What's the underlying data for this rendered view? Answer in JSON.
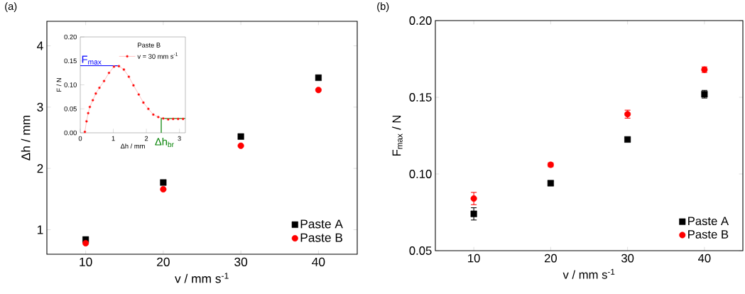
{
  "chart_data": [
    {
      "type": "scatter",
      "title": "(a)",
      "xlabel": "v / mm s$^{-1}$",
      "ylabel": "Δh / mm",
      "x": [
        10,
        20,
        30,
        40
      ],
      "xlim": [
        5,
        45
      ],
      "ylim": [
        0.6,
        4.4
      ],
      "xticks": [
        10,
        20,
        30,
        40
      ],
      "yticks": [
        1,
        2,
        3,
        4
      ],
      "legend": "bottom right",
      "series": [
        {
          "name": "Paste A",
          "color": "#000000",
          "marker": "square",
          "values": [
            0.84,
            1.77,
            2.52,
            3.48
          ]
        },
        {
          "name": "Paste B",
          "color": "#ff0000",
          "marker": "circle",
          "values": [
            0.78,
            1.66,
            2.37,
            3.28
          ]
        }
      ]
    },
    {
      "type": "line",
      "xlabel": "Δh / mm",
      "ylabel": "F / N",
      "legend_title": "Paste B",
      "legend": "top right",
      "marker": "circle",
      "xlim": [
        0,
        3.18
      ],
      "ylim": [
        0,
        0.2
      ],
      "xticks": [
        0,
        1,
        2,
        3
      ],
      "yticks": [
        {
          "value": 0,
          "label": "0.00"
        },
        {
          "value": 0.05,
          "label": "0.05"
        },
        {
          "value": 0.1,
          "label": "0.10"
        },
        {
          "value": 0.15,
          "label": "0.15"
        },
        {
          "value": 0.2,
          "label": "0.20"
        }
      ],
      "series": [
        {
          "name": "v = 30 mm s$^{-1}$",
          "color": "#ff0000",
          "x": [
            0.14,
            0.19,
            0.24,
            0.29,
            0.38,
            0.47,
            0.58,
            0.72,
            0.87,
            1.02,
            1.17,
            1.32,
            1.47,
            1.61,
            1.77,
            1.91,
            2.06,
            2.21,
            2.36,
            2.51,
            2.66,
            2.81,
            2.96,
            3.11
          ],
          "values": [
            0.002,
            0.024,
            0.041,
            0.054,
            0.068,
            0.082,
            0.094,
            0.108,
            0.125,
            0.138,
            0.139,
            0.132,
            0.117,
            0.099,
            0.08,
            0.063,
            0.05,
            0.038,
            0.033,
            0.03,
            0.028,
            0.029,
            0.029,
            0.029
          ]
        }
      ],
      "ref_lines": [
        {
          "axis": "y",
          "value": 0.14,
          "label": "F$_{max}$",
          "color": "#0000ff"
        },
        {
          "axis": "x",
          "value": 2.45,
          "label": "Δh$_{br}$",
          "color": "#008000"
        }
      ]
    },
    {
      "type": "scatter",
      "title": "(b)",
      "xlabel": "v / mm s$^{-1}$",
      "ylabel": "F$_{max}$ / N",
      "x": [
        10,
        20,
        30,
        40
      ],
      "xlim": [
        5,
        45
      ],
      "ylim": [
        0.05,
        0.2
      ],
      "xticks": [
        10,
        20,
        30,
        40
      ],
      "yticks": [
        {
          "value": 0.05,
          "label": "0.05"
        },
        {
          "value": 0.1,
          "label": "0.10"
        },
        {
          "value": 0.15,
          "label": "0.15"
        },
        {
          "value": 0.2,
          "label": "0.20"
        }
      ],
      "legend": "bottom right",
      "series": [
        {
          "name": "Paste A",
          "color": "#000000",
          "marker": "square",
          "values": [
            0.074,
            0.094,
            0.1225,
            0.152
          ],
          "errors": [
            0.004,
            0.0012,
            0.001,
            0.0025
          ]
        },
        {
          "name": "Paste B",
          "color": "#ff0000",
          "marker": "circle",
          "values": [
            0.084,
            0.106,
            0.139,
            0.168
          ],
          "errors": [
            0.004,
            0.0013,
            0.0026,
            0.0018
          ]
        }
      ]
    }
  ]
}
